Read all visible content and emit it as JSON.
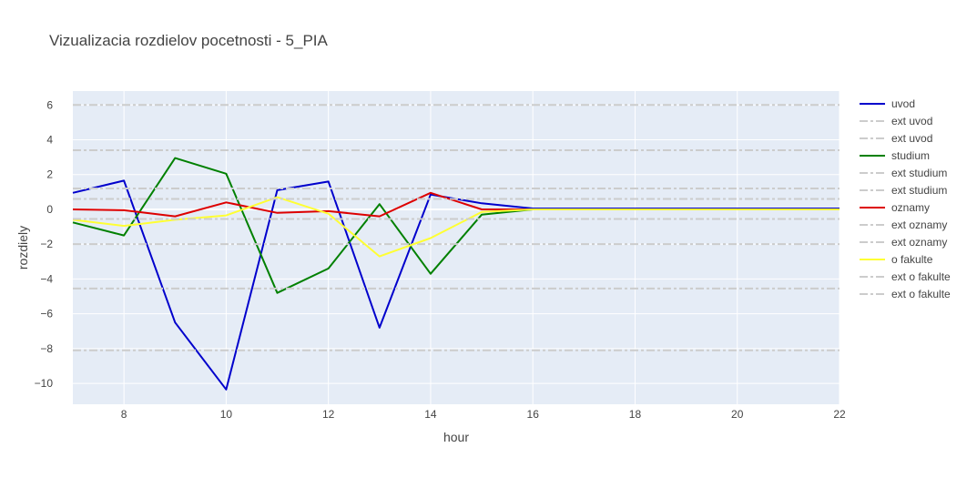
{
  "chart_data": {
    "type": "line",
    "title": "Vizualizacia rozdielov pocetnosti - 5_PIA",
    "xlabel": "hour",
    "ylabel": "rozdiely",
    "xlim": [
      7,
      22
    ],
    "ylim": [
      -11.2,
      6.8
    ],
    "x_ticks": [
      8,
      10,
      12,
      14,
      16,
      18,
      20,
      22
    ],
    "y_ticks": [
      6,
      4,
      2,
      0,
      -2,
      -4,
      -6,
      -8,
      -10
    ],
    "y_tick_labels": [
      "6",
      "4",
      "2",
      "0",
      "−2",
      "−4",
      "−6",
      "−8",
      "−10"
    ],
    "grid": true,
    "legend_position": "right",
    "x": [
      7,
      8,
      9,
      10,
      11,
      12,
      13,
      14,
      15,
      16,
      17,
      18,
      19,
      20,
      21,
      22
    ],
    "series": [
      {
        "name": "uvod",
        "kind": "line",
        "color": "#0000cc",
        "values": [
          0.95,
          1.65,
          -6.5,
          -10.35,
          1.1,
          1.6,
          -6.8,
          0.85,
          0.35,
          0.05,
          0.05,
          0.05,
          0.05,
          0.05,
          0.05,
          0.05
        ]
      },
      {
        "name": "ext uvod",
        "kind": "hline",
        "color": "#cccccc",
        "y": 6.0
      },
      {
        "name": "ext uvod",
        "kind": "hline",
        "color": "#cccccc",
        "y": -8.1
      },
      {
        "name": "studium",
        "kind": "line",
        "color": "#008000",
        "values": [
          -0.75,
          -1.5,
          2.95,
          2.05,
          -4.8,
          -3.4,
          0.3,
          -3.7,
          -0.3,
          0.0,
          0.0,
          0.0,
          0.0,
          0.0,
          0.0,
          0.0
        ]
      },
      {
        "name": "ext studium",
        "kind": "hline",
        "color": "#cccccc",
        "y": 3.4
      },
      {
        "name": "ext studium",
        "kind": "hline",
        "color": "#cccccc",
        "y": -4.55
      },
      {
        "name": "oznamy",
        "kind": "line",
        "color": "#dd0000",
        "values": [
          0.0,
          -0.05,
          -0.4,
          0.4,
          -0.2,
          -0.1,
          -0.4,
          0.95,
          0.0,
          0.0,
          0.0,
          0.0,
          0.0,
          0.0,
          0.0,
          0.0
        ]
      },
      {
        "name": "ext oznamy",
        "kind": "hline",
        "color": "#cccccc",
        "y": 1.2
      },
      {
        "name": "ext oznamy",
        "kind": "hline",
        "color": "#cccccc",
        "y": -2.0
      },
      {
        "name": "o fakulte",
        "kind": "line",
        "color": "#ffff33",
        "values": [
          -0.6,
          -0.95,
          -0.6,
          -0.35,
          0.7,
          -0.25,
          -2.7,
          -1.65,
          -0.15,
          0.0,
          0.0,
          0.0,
          0.0,
          0.0,
          0.0,
          0.0
        ]
      },
      {
        "name": "ext o fakulte",
        "kind": "hline",
        "color": "#cccccc",
        "y": 0.6
      },
      {
        "name": "ext o fakulte",
        "kind": "hline",
        "color": "#cccccc",
        "y": -0.55
      }
    ]
  }
}
